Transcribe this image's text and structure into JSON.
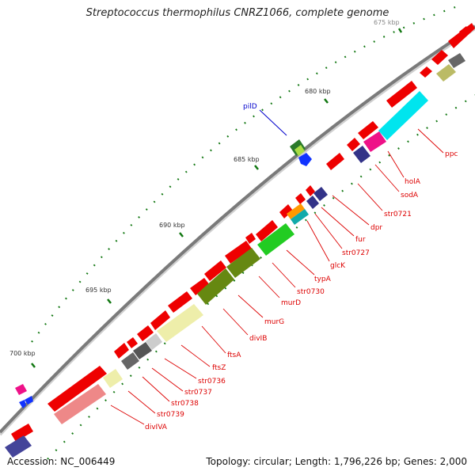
{
  "title": "Streptococcus thermophilus CNRZ1066, complete genome",
  "accession": "Accession: NC_006449",
  "topology": "Topology: circular; Length: 1,796,226 bp; Genes: 2,000",
  "colors": {
    "backbone": "#7a7a7a",
    "cds_forward": "#ee0000",
    "cds_reverse": "#ee0000",
    "gene_label": "#dd0000",
    "highlight_label": "#0000cc",
    "ticks": "#117711"
  },
  "ruler": [
    "675 kbp",
    "680 kbp",
    "685 kbp",
    "690 kbp",
    "695 kbp",
    "700 kbp"
  ],
  "highlight_gene": "pilD",
  "gene_labels": [
    "ppc",
    "holA",
    "sodA",
    "str0721",
    "dpr",
    "fur",
    "str0727",
    "glcK",
    "typA",
    "str0730",
    "murD",
    "murG",
    "divIB",
    "ftsA",
    "ftsZ",
    "str0736",
    "str0737",
    "str0738",
    "str0739",
    "divIVA"
  ]
}
